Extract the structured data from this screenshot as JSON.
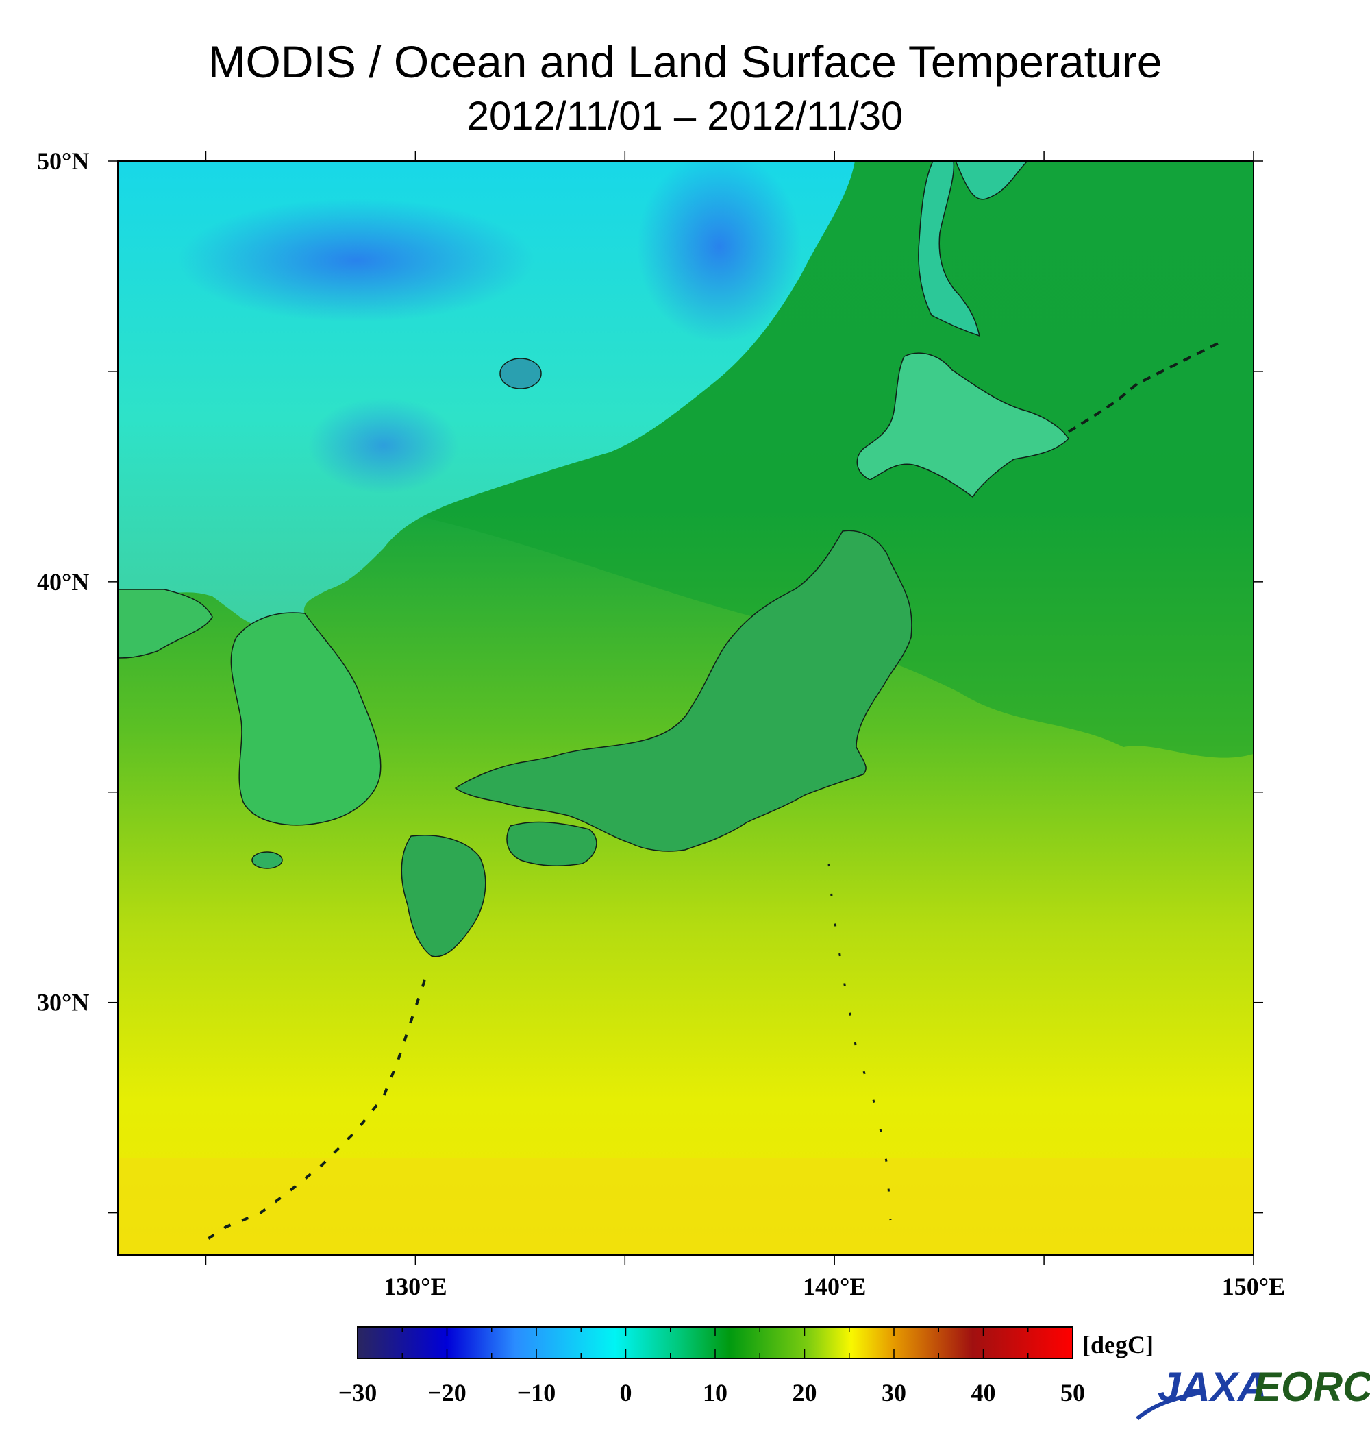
{
  "header": {
    "title": "MODIS / Ocean and Land Surface Temperature",
    "date_range": "2012/11/01 – 2012/11/30"
  },
  "map": {
    "lat_labels": [
      "50°N",
      "40°N",
      "30°N"
    ],
    "lon_labels": [
      "130°E",
      "140°E",
      "150°E"
    ],
    "lat_values": [
      50,
      40,
      30
    ],
    "lon_values": [
      130,
      140,
      150
    ]
  },
  "colorbar": {
    "unit": "[degC]",
    "min": -30,
    "max": 50,
    "tick_labels": [
      "−30",
      "−20",
      "−10",
      "0",
      "10",
      "20",
      "30",
      "40",
      "50"
    ],
    "colors": [
      "#2a2660",
      "#0000d8",
      "#2a8cff",
      "#00f4f4",
      "#00c87a",
      "#009a10",
      "#7ccc10",
      "#f8f800",
      "#e69a00",
      "#a01010",
      "#ff0000"
    ]
  },
  "logo": {
    "agency": "JAXA",
    "center": "EORC"
  }
}
